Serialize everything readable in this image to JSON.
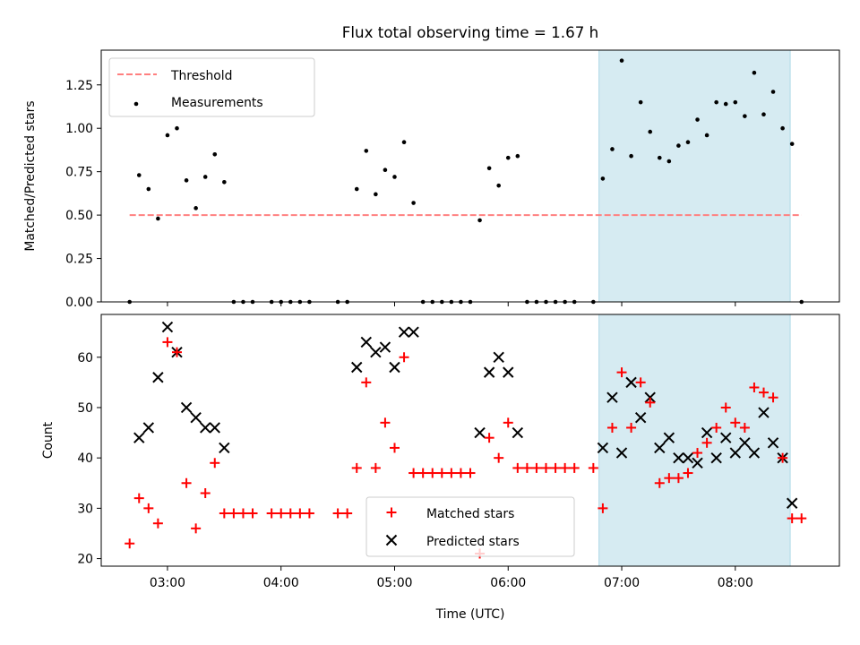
{
  "chart_data": [
    {
      "type": "scatter",
      "title": "Flux total observing time = 1.67 h",
      "xlabel": "",
      "ylabel": "Matched/Predicted stars",
      "x_is_time": true,
      "xlim": [
        "02:25",
        "08:55"
      ],
      "ylim": [
        0,
        1.45
      ],
      "yticks": [
        0.0,
        0.25,
        0.5,
        0.75,
        1.0,
        1.25
      ],
      "ytick_labels": [
        "0.00",
        "0.25",
        "0.50",
        "0.75",
        "1.00",
        "1.25"
      ],
      "xticks": [
        "03:00",
        "04:00",
        "05:00",
        "06:00",
        "07:00",
        "08:00"
      ],
      "shaded_region": {
        "x_start": "06:48",
        "x_end": "08:29",
        "color": "#add8e6"
      },
      "threshold": {
        "label": "Threshold",
        "value": 0.5,
        "x_start": "02:40",
        "x_end": "08:35",
        "color": "#ff7f7f"
      },
      "legend": {
        "position": "top-left",
        "entries": [
          "Threshold",
          "Measurements"
        ]
      },
      "series": [
        {
          "name": "Measurements",
          "color": "#000000",
          "points": [
            [
              "02:40",
              0.0
            ],
            [
              "02:45",
              0.73
            ],
            [
              "02:50",
              0.65
            ],
            [
              "02:55",
              0.48
            ],
            [
              "03:00",
              0.96
            ],
            [
              "03:05",
              1.0
            ],
            [
              "03:10",
              0.7
            ],
            [
              "03:15",
              0.54
            ],
            [
              "03:20",
              0.72
            ],
            [
              "03:25",
              0.85
            ],
            [
              "03:30",
              0.69
            ],
            [
              "03:35",
              0.0
            ],
            [
              "03:40",
              0.0
            ],
            [
              "03:45",
              0.0
            ],
            [
              "03:55",
              0.0
            ],
            [
              "04:00",
              0.0
            ],
            [
              "04:05",
              0.0
            ],
            [
              "04:10",
              0.0
            ],
            [
              "04:15",
              0.0
            ],
            [
              "04:30",
              0.0
            ],
            [
              "04:35",
              0.0
            ],
            [
              "04:40",
              0.65
            ],
            [
              "04:45",
              0.87
            ],
            [
              "04:50",
              0.62
            ],
            [
              "04:55",
              0.76
            ],
            [
              "05:00",
              0.72
            ],
            [
              "05:05",
              0.92
            ],
            [
              "05:10",
              0.57
            ],
            [
              "05:15",
              0.0
            ],
            [
              "05:20",
              0.0
            ],
            [
              "05:25",
              0.0
            ],
            [
              "05:30",
              0.0
            ],
            [
              "05:35",
              0.0
            ],
            [
              "05:40",
              0.0
            ],
            [
              "05:45",
              0.47
            ],
            [
              "05:50",
              0.77
            ],
            [
              "05:55",
              0.67
            ],
            [
              "06:00",
              0.83
            ],
            [
              "06:05",
              0.84
            ],
            [
              "06:10",
              0.0
            ],
            [
              "06:15",
              0.0
            ],
            [
              "06:20",
              0.0
            ],
            [
              "06:25",
              0.0
            ],
            [
              "06:30",
              0.0
            ],
            [
              "06:35",
              0.0
            ],
            [
              "06:45",
              0.0
            ],
            [
              "06:50",
              0.71
            ],
            [
              "06:55",
              0.88
            ],
            [
              "07:00",
              1.39
            ],
            [
              "07:05",
              0.84
            ],
            [
              "07:10",
              1.15
            ],
            [
              "07:15",
              0.98
            ],
            [
              "07:20",
              0.83
            ],
            [
              "07:25",
              0.81
            ],
            [
              "07:30",
              0.9
            ],
            [
              "07:35",
              0.92
            ],
            [
              "07:40",
              1.05
            ],
            [
              "07:45",
              0.96
            ],
            [
              "07:50",
              1.15
            ],
            [
              "07:55",
              1.14
            ],
            [
              "08:00",
              1.15
            ],
            [
              "08:05",
              1.07
            ],
            [
              "08:10",
              1.32
            ],
            [
              "08:15",
              1.08
            ],
            [
              "08:20",
              1.21
            ],
            [
              "08:25",
              1.0
            ],
            [
              "08:30",
              0.91
            ],
            [
              "08:35",
              0.0
            ]
          ]
        }
      ]
    },
    {
      "type": "scatter",
      "title": "",
      "xlabel": "Time (UTC)",
      "ylabel": "Count",
      "x_is_time": true,
      "xlim": [
        "02:25",
        "08:55"
      ],
      "ylim": [
        18.5,
        68.5
      ],
      "yticks": [
        20,
        30,
        40,
        50,
        60
      ],
      "ytick_labels": [
        "20",
        "30",
        "40",
        "50",
        "60"
      ],
      "xticks": [
        "03:00",
        "04:00",
        "05:00",
        "06:00",
        "07:00",
        "08:00"
      ],
      "xtick_labels": [
        "03:00",
        "04:00",
        "05:00",
        "06:00",
        "07:00",
        "08:00"
      ],
      "shaded_region": {
        "x_start": "06:48",
        "x_end": "08:29",
        "color": "#add8e6"
      },
      "legend": {
        "position": "bottom-center",
        "entries": [
          "Matched stars",
          "Predicted stars"
        ]
      },
      "series": [
        {
          "name": "Matched stars",
          "marker": "plus",
          "color": "#ff0000",
          "points": [
            [
              "02:40",
              23
            ],
            [
              "02:45",
              32
            ],
            [
              "02:50",
              30
            ],
            [
              "02:55",
              27
            ],
            [
              "03:00",
              63
            ],
            [
              "03:05",
              61
            ],
            [
              "03:10",
              35
            ],
            [
              "03:15",
              26
            ],
            [
              "03:20",
              33
            ],
            [
              "03:25",
              39
            ],
            [
              "03:30",
              29
            ],
            [
              "03:35",
              29
            ],
            [
              "03:40",
              29
            ],
            [
              "03:45",
              29
            ],
            [
              "03:55",
              29
            ],
            [
              "04:00",
              29
            ],
            [
              "04:05",
              29
            ],
            [
              "04:10",
              29
            ],
            [
              "04:15",
              29
            ],
            [
              "04:30",
              29
            ],
            [
              "04:35",
              29
            ],
            [
              "04:40",
              38
            ],
            [
              "04:45",
              55
            ],
            [
              "04:50",
              38
            ],
            [
              "04:55",
              47
            ],
            [
              "05:00",
              42
            ],
            [
              "05:05",
              60
            ],
            [
              "05:10",
              37
            ],
            [
              "05:15",
              37
            ],
            [
              "05:20",
              37
            ],
            [
              "05:25",
              37
            ],
            [
              "05:30",
              37
            ],
            [
              "05:35",
              37
            ],
            [
              "05:40",
              37
            ],
            [
              "05:45",
              21
            ],
            [
              "05:50",
              44
            ],
            [
              "05:55",
              40
            ],
            [
              "06:00",
              47
            ],
            [
              "06:05",
              38
            ],
            [
              "06:10",
              38
            ],
            [
              "06:15",
              38
            ],
            [
              "06:20",
              38
            ],
            [
              "06:25",
              38
            ],
            [
              "06:30",
              38
            ],
            [
              "06:35",
              38
            ],
            [
              "06:45",
              38
            ],
            [
              "06:50",
              30
            ],
            [
              "06:55",
              46
            ],
            [
              "07:00",
              57
            ],
            [
              "07:05",
              46
            ],
            [
              "07:10",
              55
            ],
            [
              "07:15",
              51
            ],
            [
              "07:20",
              35
            ],
            [
              "07:25",
              36
            ],
            [
              "07:30",
              36
            ],
            [
              "07:35",
              37
            ],
            [
              "07:40",
              41
            ],
            [
              "07:45",
              43
            ],
            [
              "07:50",
              46
            ],
            [
              "07:55",
              50
            ],
            [
              "08:00",
              47
            ],
            [
              "08:05",
              46
            ],
            [
              "08:10",
              54
            ],
            [
              "08:15",
              53
            ],
            [
              "08:20",
              52
            ],
            [
              "08:25",
              40
            ],
            [
              "08:30",
              28
            ],
            [
              "08:35",
              28
            ]
          ]
        },
        {
          "name": "Predicted stars",
          "marker": "x",
          "color": "#000000",
          "points": [
            [
              "02:45",
              44
            ],
            [
              "02:50",
              46
            ],
            [
              "02:55",
              56
            ],
            [
              "03:00",
              66
            ],
            [
              "03:05",
              61
            ],
            [
              "03:10",
              50
            ],
            [
              "03:15",
              48
            ],
            [
              "03:20",
              46
            ],
            [
              "03:25",
              46
            ],
            [
              "03:30",
              42
            ],
            [
              "04:40",
              58
            ],
            [
              "04:45",
              63
            ],
            [
              "04:50",
              61
            ],
            [
              "04:55",
              62
            ],
            [
              "05:00",
              58
            ],
            [
              "05:05",
              65
            ],
            [
              "05:10",
              65
            ],
            [
              "05:45",
              45
            ],
            [
              "05:50",
              57
            ],
            [
              "05:55",
              60
            ],
            [
              "06:00",
              57
            ],
            [
              "06:05",
              45
            ],
            [
              "06:50",
              42
            ],
            [
              "06:55",
              52
            ],
            [
              "07:00",
              41
            ],
            [
              "07:05",
              55
            ],
            [
              "07:10",
              48
            ],
            [
              "07:15",
              52
            ],
            [
              "07:20",
              42
            ],
            [
              "07:25",
              44
            ],
            [
              "07:30",
              40
            ],
            [
              "07:35",
              40
            ],
            [
              "07:40",
              39
            ],
            [
              "07:45",
              45
            ],
            [
              "07:50",
              40
            ],
            [
              "07:55",
              44
            ],
            [
              "08:00",
              41
            ],
            [
              "08:05",
              43
            ],
            [
              "08:10",
              41
            ],
            [
              "08:15",
              49
            ],
            [
              "08:20",
              43
            ],
            [
              "08:25",
              40
            ],
            [
              "08:30",
              31
            ]
          ]
        }
      ]
    }
  ]
}
